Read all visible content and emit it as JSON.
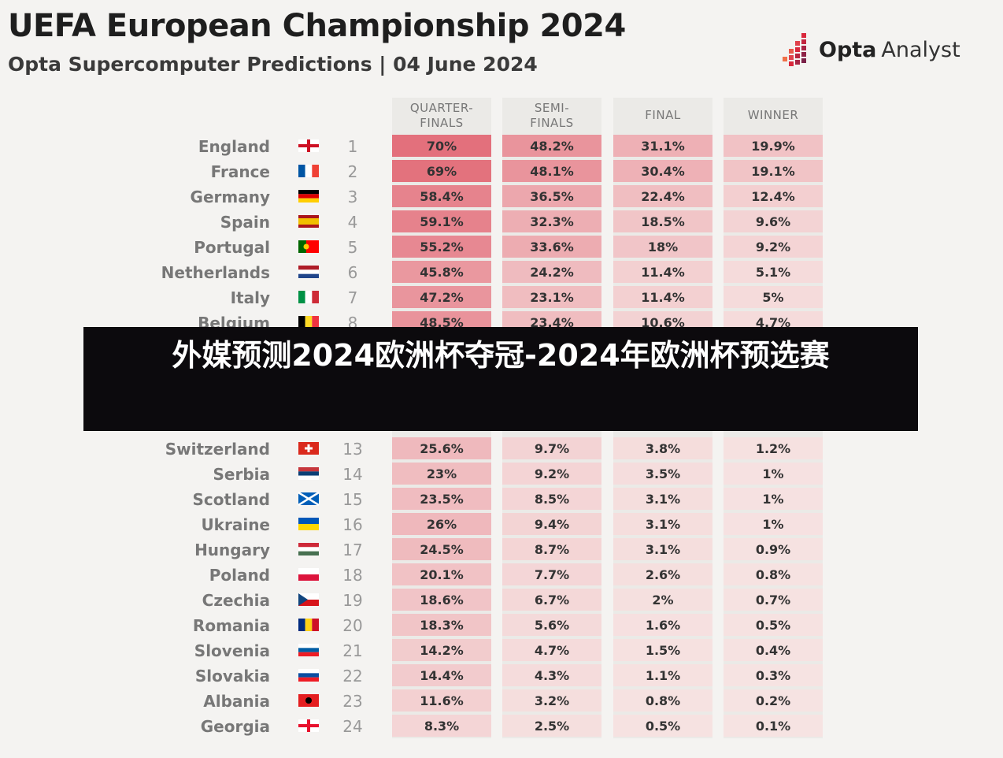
{
  "header": {
    "title": "UEFA European Championship 2024",
    "subtitle": "Opta Supercomputer Predictions | 04 June 2024",
    "brand_strong": "Opta",
    "brand_light": "Analyst"
  },
  "overlay": {
    "text": "外媒预测2024欧洲杯夺冠-2024年欧洲杯预选赛"
  },
  "colors": {
    "background": "#f4f3f1",
    "cell_high": "#e3707c",
    "cell_low": "#f6e3e2",
    "banner": "#0c0a0d",
    "brand_accent": "#d9283c"
  },
  "chart_data": {
    "type": "table",
    "title": "UEFA European Championship 2024",
    "subtitle": "Opta Supercomputer Predictions | 04 June 2024",
    "columns": [
      "QUARTER-FINALS",
      "SEMI-FINALS",
      "FINAL",
      "WINNER"
    ],
    "column_lines": [
      [
        "QUARTER-",
        "FINALS"
      ],
      [
        "SEMI-",
        "FINALS"
      ],
      [
        "FINAL"
      ],
      [
        "WINNER"
      ]
    ],
    "rows": [
      {
        "team": "England",
        "seed": "1",
        "flag": "england-flag",
        "values": [
          "70%",
          "48.2%",
          "31.1%",
          "19.9%"
        ]
      },
      {
        "team": "France",
        "seed": "2",
        "flag": "france-flag",
        "values": [
          "69%",
          "48.1%",
          "30.4%",
          "19.1%"
        ]
      },
      {
        "team": "Germany",
        "seed": "3",
        "flag": "germany-flag",
        "values": [
          "58.4%",
          "36.5%",
          "22.4%",
          "12.4%"
        ]
      },
      {
        "team": "Spain",
        "seed": "4",
        "flag": "spain-flag",
        "values": [
          "59.1%",
          "32.3%",
          "18.5%",
          "9.6%"
        ]
      },
      {
        "team": "Portugal",
        "seed": "5",
        "flag": "portugal-flag",
        "values": [
          "55.2%",
          "33.6%",
          "18%",
          "9.2%"
        ]
      },
      {
        "team": "Netherlands",
        "seed": "6",
        "flag": "netherlands-flag",
        "values": [
          "45.8%",
          "24.2%",
          "11.4%",
          "5.1%"
        ]
      },
      {
        "team": "Italy",
        "seed": "7",
        "flag": "italy-flag",
        "values": [
          "47.2%",
          "23.1%",
          "11.4%",
          "5%"
        ]
      },
      {
        "team": "Belgium",
        "seed": "8",
        "flag": "belgium-flag",
        "values": [
          "48.5%",
          "23.4%",
          "10.6%",
          "4.7%"
        ]
      },
      {
        "team": "Switzerland",
        "seed": "13",
        "flag": "switzerland-flag",
        "values": [
          "25.6%",
          "9.7%",
          "3.8%",
          "1.2%"
        ]
      },
      {
        "team": "Serbia",
        "seed": "14",
        "flag": "serbia-flag",
        "values": [
          "23%",
          "9.2%",
          "3.5%",
          "1%"
        ]
      },
      {
        "team": "Scotland",
        "seed": "15",
        "flag": "scotland-flag",
        "values": [
          "23.5%",
          "8.5%",
          "3.1%",
          "1%"
        ]
      },
      {
        "team": "Ukraine",
        "seed": "16",
        "flag": "ukraine-flag",
        "values": [
          "26%",
          "9.4%",
          "3.1%",
          "1%"
        ]
      },
      {
        "team": "Hungary",
        "seed": "17",
        "flag": "hungary-flag",
        "values": [
          "24.5%",
          "8.7%",
          "3.1%",
          "0.9%"
        ]
      },
      {
        "team": "Poland",
        "seed": "18",
        "flag": "poland-flag",
        "values": [
          "20.1%",
          "7.7%",
          "2.6%",
          "0.8%"
        ]
      },
      {
        "team": "Czechia",
        "seed": "19",
        "flag": "czechia-flag",
        "values": [
          "18.6%",
          "6.7%",
          "2%",
          "0.7%"
        ]
      },
      {
        "team": "Romania",
        "seed": "20",
        "flag": "romania-flag",
        "values": [
          "18.3%",
          "5.6%",
          "1.6%",
          "0.5%"
        ]
      },
      {
        "team": "Slovenia",
        "seed": "21",
        "flag": "slovenia-flag",
        "values": [
          "14.2%",
          "4.7%",
          "1.5%",
          "0.4%"
        ]
      },
      {
        "team": "Slovakia",
        "seed": "22",
        "flag": "slovakia-flag",
        "values": [
          "14.4%",
          "4.3%",
          "1.1%",
          "0.3%"
        ]
      },
      {
        "team": "Albania",
        "seed": "23",
        "flag": "albania-flag",
        "values": [
          "11.6%",
          "3.2%",
          "0.8%",
          "0.2%"
        ]
      },
      {
        "team": "Georgia",
        "seed": "24",
        "flag": "georgia-flag",
        "values": [
          "8.3%",
          "2.5%",
          "0.5%",
          "0.1%"
        ]
      }
    ]
  }
}
